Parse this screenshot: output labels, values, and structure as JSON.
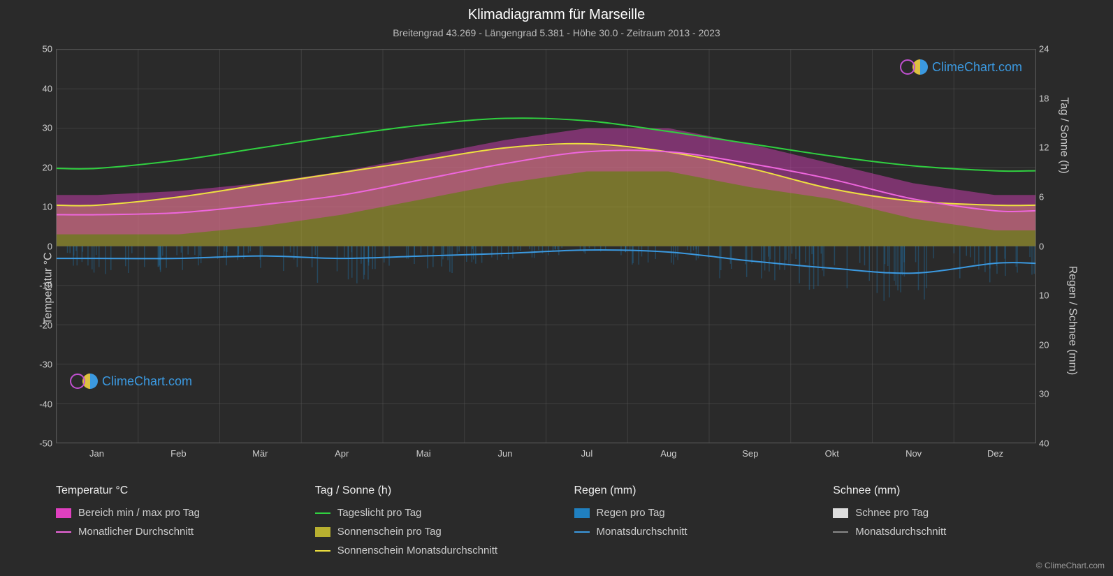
{
  "title": "Klimadiagramm für Marseille",
  "subtitle": "Breitengrad 43.269 - Längengrad 5.381 - Höhe 30.0 - Zeitraum 2013 - 2023",
  "axis_left_label": "Temperatur °C",
  "axis_right_top_label": "Tag / Sonne (h)",
  "axis_right_bottom_label": "Regen / Schnee (mm)",
  "copyright": "© ClimeChart.com",
  "watermark_text": "ClimeChart.com",
  "background_color": "#2a2a2a",
  "grid_color": "#555555",
  "text_color": "#cccccc",
  "title_color": "#ffffff",
  "title_fontsize": 20,
  "subtitle_fontsize": 14,
  "axis_fontsize": 16,
  "tick_fontsize": 13,
  "legend_fontsize": 15,
  "plot": {
    "x_categories": [
      "Jan",
      "Feb",
      "Mär",
      "Apr",
      "Mai",
      "Jun",
      "Jul",
      "Aug",
      "Sep",
      "Okt",
      "Nov",
      "Dez"
    ],
    "left_axis": {
      "min": -50,
      "max": 50,
      "ticks": [
        -50,
        -40,
        -30,
        -20,
        -10,
        0,
        10,
        20,
        30,
        40,
        50
      ]
    },
    "right_axis_top": {
      "min": 0,
      "max": 24,
      "ticks": [
        0,
        6,
        12,
        18,
        24
      ]
    },
    "right_axis_bottom": {
      "min": 0,
      "max": 40,
      "ticks": [
        0,
        10,
        20,
        30,
        40
      ]
    },
    "series": {
      "temp_range_band": {
        "type": "area_band",
        "color": "#e040c0",
        "opacity": 0.45,
        "low": [
          3,
          3,
          5,
          8,
          12,
          16,
          19,
          19,
          15,
          12,
          7,
          4
        ],
        "high": [
          13,
          14,
          16,
          19,
          23,
          27,
          30,
          30,
          26,
          21,
          16,
          13
        ]
      },
      "temp_monthly_avg": {
        "type": "line",
        "color": "#ee66dd",
        "width": 2,
        "values": [
          8,
          8.5,
          10.5,
          13,
          17,
          21,
          24,
          24,
          21,
          17,
          12,
          9
        ]
      },
      "daylight": {
        "type": "line_right_top",
        "color": "#30d040",
        "width": 2,
        "values": [
          9.5,
          10.5,
          12,
          13.5,
          14.8,
          15.6,
          15.3,
          14,
          12.5,
          11,
          9.8,
          9.2
        ]
      },
      "sunshine_area": {
        "type": "area_right_top",
        "color": "#b8b030",
        "opacity": 0.55,
        "values": [
          5,
          6,
          7.5,
          9,
          10.5,
          12,
          12.5,
          11.5,
          9.5,
          7,
          5.5,
          5
        ]
      },
      "sunshine_monthly": {
        "type": "line_right_top",
        "color": "#eee040",
        "width": 2,
        "values": [
          5,
          6,
          7.5,
          9,
          10.5,
          12,
          12.5,
          11.5,
          9.5,
          7,
          5.5,
          5
        ]
      },
      "rain_daily_bars": {
        "type": "bars_right_bottom",
        "color": "#2080c0",
        "opacity": 0.35,
        "values": [
          3,
          3,
          3,
          4,
          3,
          2,
          1,
          2,
          4,
          5,
          6,
          4
        ]
      },
      "rain_monthly": {
        "type": "line_right_bottom",
        "color": "#3b99e0",
        "width": 2,
        "values": [
          2.5,
          2.5,
          2,
          2.5,
          2,
          1.5,
          0.8,
          1.2,
          3,
          4.5,
          5.5,
          3.5
        ]
      },
      "snow_monthly": {
        "type": "line_right_bottom",
        "color": "#888888",
        "width": 2,
        "values": [
          0,
          0,
          0,
          0,
          0,
          0,
          0,
          0,
          0,
          0,
          0,
          0
        ]
      }
    }
  },
  "legend": {
    "columns": [
      {
        "header": "Temperatur °C",
        "items": [
          {
            "type": "swatch",
            "color": "#e040c0",
            "label": "Bereich min / max pro Tag"
          },
          {
            "type": "line",
            "color": "#ee66dd",
            "label": "Monatlicher Durchschnitt"
          }
        ]
      },
      {
        "header": "Tag / Sonne (h)",
        "items": [
          {
            "type": "line",
            "color": "#30d040",
            "label": "Tageslicht pro Tag"
          },
          {
            "type": "swatch",
            "color": "#b8b030",
            "label": "Sonnenschein pro Tag"
          },
          {
            "type": "line",
            "color": "#eee040",
            "label": "Sonnenschein Monatsdurchschnitt"
          }
        ]
      },
      {
        "header": "Regen (mm)",
        "items": [
          {
            "type": "swatch",
            "color": "#2080c0",
            "label": "Regen pro Tag"
          },
          {
            "type": "line",
            "color": "#3b99e0",
            "label": "Monatsdurchschnitt"
          }
        ]
      },
      {
        "header": "Schnee (mm)",
        "items": [
          {
            "type": "swatch",
            "color": "#dddddd",
            "label": "Schnee pro Tag"
          },
          {
            "type": "line",
            "color": "#888888",
            "label": "Monatsdurchschnitt"
          }
        ]
      }
    ]
  }
}
